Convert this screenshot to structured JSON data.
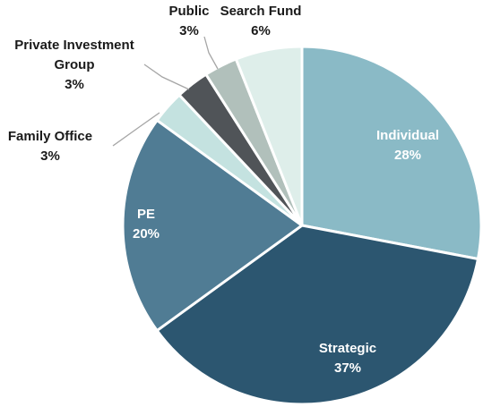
{
  "chart_data": {
    "type": "pie",
    "title": "",
    "start_angle_deg": 0,
    "direction": "clockwise",
    "slices": [
      {
        "label": "Individual",
        "value": 28,
        "value_label": "28%",
        "color": "#8abac6",
        "label_color": "#ffffff"
      },
      {
        "label": "Strategic",
        "value": 37,
        "value_label": "37%",
        "color": "#2c5670",
        "label_color": "#ffffff"
      },
      {
        "label": "PE",
        "value": 20,
        "value_label": "20%",
        "color": "#507c94",
        "label_color": "#ffffff"
      },
      {
        "label": "Family Office",
        "value": 3,
        "value_label": "3%",
        "color": "#c4e2e0",
        "label_color": "#1a1a1a"
      },
      {
        "label": "Private Investment Group",
        "label_lines": [
          "Private Investment",
          "Group"
        ],
        "value": 3,
        "value_label": "3%",
        "color": "#505458",
        "label_color": "#1a1a1a"
      },
      {
        "label": "Public",
        "value": 3,
        "value_label": "3%",
        "color": "#b1c0bb",
        "label_color": "#1a1a1a"
      },
      {
        "label": "Search Fund",
        "value": 6,
        "value_label": "6%",
        "color": "#deeeea",
        "label_color": "#1a1a1a"
      }
    ]
  }
}
